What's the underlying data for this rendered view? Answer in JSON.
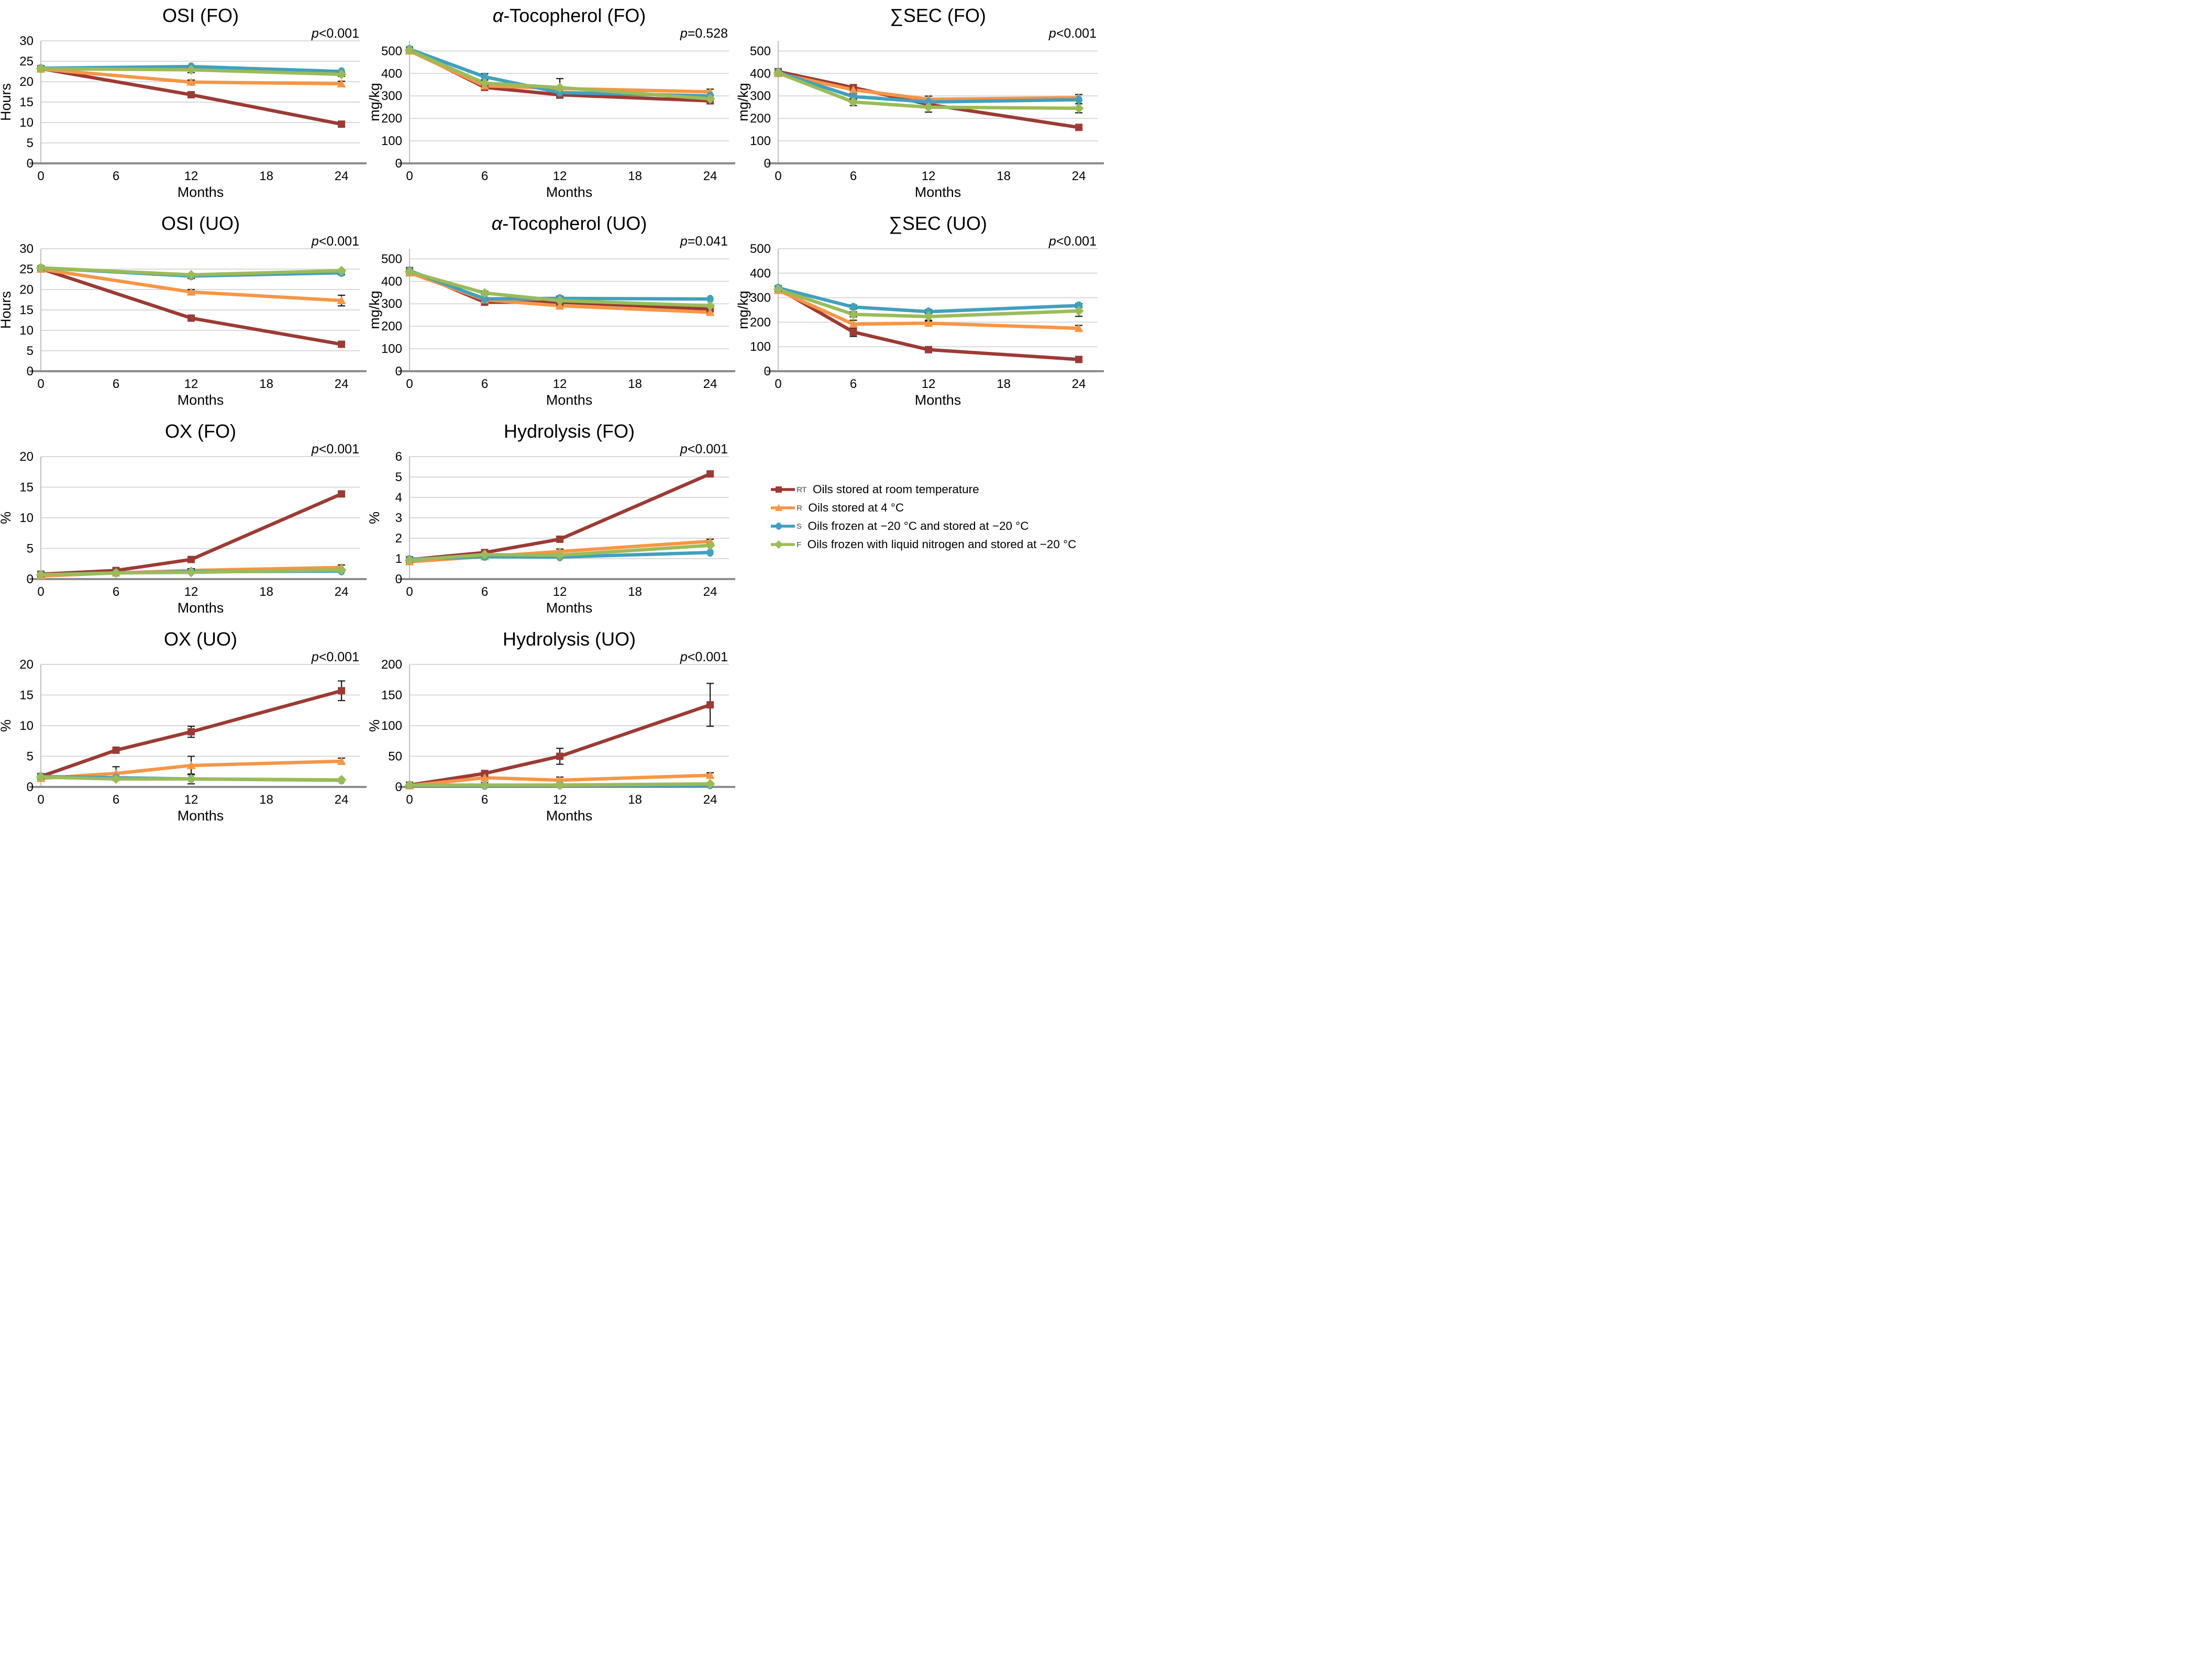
{
  "legend": {
    "items": [
      {
        "key": "RT",
        "label": "Oils stored at room temperature",
        "color": "#9B3B35",
        "marker": "square"
      },
      {
        "key": "R",
        "label": "Oils stored at 4 °C",
        "color": "#F79646",
        "marker": "triangle"
      },
      {
        "key": "S",
        "label": "Oils frozen at −20 °C and stored at −20 °C",
        "color": "#41A0BE",
        "marker": "circle"
      },
      {
        "key": "F",
        "label": "Oils frozen with liquid nitrogen and stored at −20 °C",
        "color": "#9BBB59",
        "marker": "diamond"
      }
    ]
  },
  "chart_data": [
    {
      "type": "line",
      "title": "OSI (FO)",
      "p_label": "p<0.001",
      "xlabel": "Months",
      "ylabel": "Hours",
      "xlim": [
        0,
        25.5
      ],
      "x_ticks": [
        0,
        6,
        12,
        18,
        24
      ],
      "ylim": [
        0,
        30
      ],
      "y_ticks": [
        0,
        5,
        10,
        15,
        20,
        25,
        30
      ],
      "x": [
        0,
        12,
        24
      ],
      "series": [
        {
          "key": "RT",
          "values": [
            23.2,
            16.8,
            9.6
          ],
          "err": [
            0,
            0.5,
            0.5
          ]
        },
        {
          "key": "R",
          "values": [
            23.1,
            19.9,
            19.5
          ],
          "err": [
            0,
            0.5,
            0.6
          ]
        },
        {
          "key": "S",
          "values": [
            23.3,
            23.7,
            22.5
          ],
          "err": [
            0,
            0,
            0
          ]
        },
        {
          "key": "F",
          "values": [
            23.2,
            22.9,
            21.8
          ],
          "err": [
            0,
            0.7,
            0.5
          ]
        }
      ]
    },
    {
      "type": "line",
      "title": "α-Tocopherol (FO)",
      "p_label": "p=0.528",
      "xlabel": "Months",
      "ylabel": "mg/kg",
      "xlim": [
        0,
        25.5
      ],
      "x_ticks": [
        0,
        6,
        12,
        18,
        24
      ],
      "ylim": [
        0,
        545
      ],
      "y_ticks": [
        0,
        100,
        200,
        300,
        400,
        500
      ],
      "x": [
        0,
        6,
        12,
        24
      ],
      "series": [
        {
          "key": "RT",
          "values": [
            505,
            338,
            305,
            278
          ],
          "err": [
            0,
            0,
            15,
            0
          ]
        },
        {
          "key": "R",
          "values": [
            500,
            345,
            333,
            318
          ],
          "err": [
            0,
            0,
            0,
            12
          ]
        },
        {
          "key": "S",
          "values": [
            508,
            385,
            315,
            300
          ],
          "err": [
            0,
            14,
            0,
            0
          ]
        },
        {
          "key": "F",
          "values": [
            503,
            357,
            337,
            287
          ],
          "err": [
            0,
            0,
            40,
            0
          ]
        }
      ]
    },
    {
      "type": "line",
      "title": "∑SEC (FO)",
      "p_label": "p<0.001",
      "xlabel": "Months",
      "ylabel": "mg/kg",
      "xlim": [
        0,
        25.5
      ],
      "x_ticks": [
        0,
        6,
        12,
        18,
        24
      ],
      "ylim": [
        0,
        545
      ],
      "y_ticks": [
        0,
        100,
        200,
        300,
        400,
        500
      ],
      "x": [
        0,
        6,
        12,
        24
      ],
      "series": [
        {
          "key": "RT",
          "values": [
            408,
            337,
            262,
            160
          ],
          "err": [
            0,
            0,
            0,
            0
          ]
        },
        {
          "key": "R",
          "values": [
            400,
            327,
            285,
            292
          ],
          "err": [
            0,
            0,
            14,
            14
          ]
        },
        {
          "key": "S",
          "values": [
            405,
            297,
            273,
            283
          ],
          "err": [
            0,
            12,
            0,
            0
          ]
        },
        {
          "key": "F",
          "values": [
            402,
            273,
            250,
            245
          ],
          "err": [
            0,
            16,
            22,
            20
          ]
        }
      ]
    },
    {
      "type": "line",
      "title": "OSI (UO)",
      "p_label": "p<0.001",
      "xlabel": "Months",
      "ylabel": "Hours",
      "xlim": [
        0,
        25.5
      ],
      "x_ticks": [
        0,
        6,
        12,
        18,
        24
      ],
      "ylim": [
        0,
        30
      ],
      "y_ticks": [
        0,
        5,
        10,
        15,
        20,
        25,
        30
      ],
      "x": [
        0,
        12,
        24
      ],
      "series": [
        {
          "key": "RT",
          "values": [
            25.1,
            13.0,
            6.6
          ],
          "err": [
            0,
            0.5,
            0
          ]
        },
        {
          "key": "R",
          "values": [
            25.0,
            19.4,
            17.3
          ],
          "err": [
            0,
            0.6,
            1.3
          ]
        },
        {
          "key": "S",
          "values": [
            25.3,
            23.3,
            24.1
          ],
          "err": [
            0,
            0.6,
            0.5
          ]
        },
        {
          "key": "F",
          "values": [
            25.3,
            23.6,
            24.6
          ],
          "err": [
            0,
            0,
            0
          ]
        }
      ]
    },
    {
      "type": "line",
      "title": "α-Tocopherol (UO)",
      "p_label": "p=0.041",
      "xlabel": "Months",
      "ylabel": "mg/kg",
      "xlim": [
        0,
        25.5
      ],
      "x_ticks": [
        0,
        6,
        12,
        18,
        24
      ],
      "ylim": [
        0,
        545
      ],
      "y_ticks": [
        0,
        100,
        200,
        300,
        400,
        500
      ],
      "x": [
        0,
        6,
        12,
        24
      ],
      "series": [
        {
          "key": "RT",
          "values": [
            448,
            307,
            307,
            277
          ],
          "err": [
            0,
            0,
            0,
            0
          ]
        },
        {
          "key": "R",
          "values": [
            438,
            318,
            291,
            262
          ],
          "err": [
            0,
            0,
            14,
            10
          ]
        },
        {
          "key": "S",
          "values": [
            447,
            322,
            324,
            321
          ],
          "err": [
            0,
            0,
            10,
            0
          ]
        },
        {
          "key": "F",
          "values": [
            442,
            348,
            314,
            291
          ],
          "err": [
            0,
            8,
            0,
            0
          ]
        }
      ]
    },
    {
      "type": "line",
      "title": "∑SEC (UO)",
      "p_label": "p<0.001",
      "xlabel": "Months",
      "ylabel": "mg/kg",
      "xlim": [
        0,
        25.5
      ],
      "x_ticks": [
        0,
        6,
        12,
        18,
        24
      ],
      "ylim": [
        0,
        500
      ],
      "y_ticks": [
        0,
        100,
        200,
        300,
        400,
        500
      ],
      "x": [
        0,
        6,
        12,
        24
      ],
      "series": [
        {
          "key": "RT",
          "values": [
            337,
            160,
            88,
            48
          ],
          "err": [
            0,
            18,
            8,
            12
          ]
        },
        {
          "key": "R",
          "values": [
            330,
            192,
            196,
            175
          ],
          "err": [
            0,
            16,
            12,
            12
          ]
        },
        {
          "key": "S",
          "values": [
            340,
            262,
            243,
            268
          ],
          "err": [
            0,
            8,
            8,
            8
          ]
        },
        {
          "key": "F",
          "values": [
            334,
            232,
            223,
            246
          ],
          "err": [
            0,
            10,
            18,
            22
          ]
        }
      ]
    },
    {
      "type": "line",
      "title": "OX (FO)",
      "p_label": "p<0.001",
      "xlabel": "Months",
      "ylabel": "%",
      "xlim": [
        0,
        25.5
      ],
      "x_ticks": [
        0,
        6,
        12,
        18,
        24
      ],
      "ylim": [
        0,
        20
      ],
      "y_ticks": [
        0,
        5,
        10,
        15,
        20
      ],
      "x": [
        0,
        6,
        12,
        24
      ],
      "series": [
        {
          "key": "RT",
          "values": [
            0.8,
            1.4,
            3.2,
            13.9
          ],
          "err": [
            0,
            0,
            0.4,
            0.4
          ]
        },
        {
          "key": "R",
          "values": [
            0.5,
            1.0,
            1.4,
            1.9
          ],
          "err": [
            0,
            0,
            0.3,
            0.4
          ]
        },
        {
          "key": "S",
          "values": [
            0.7,
            1.0,
            1.2,
            1.3
          ],
          "err": [
            0,
            0,
            0.25,
            0
          ]
        },
        {
          "key": "F",
          "values": [
            0.7,
            1.0,
            1.1,
            1.5
          ],
          "err": [
            0,
            0,
            0,
            0
          ]
        }
      ]
    },
    {
      "type": "line",
      "title": "Hydrolysis (FO)",
      "p_label": "p<0.001",
      "xlabel": "Months",
      "ylabel": "%",
      "xlim": [
        0,
        25.5
      ],
      "x_ticks": [
        0,
        6,
        12,
        18,
        24
      ],
      "ylim": [
        0,
        6
      ],
      "y_ticks": [
        0,
        1,
        2,
        3,
        4,
        5,
        6
      ],
      "x": [
        0,
        6,
        12,
        24
      ],
      "series": [
        {
          "key": "RT",
          "values": [
            0.95,
            1.3,
            1.95,
            5.15
          ],
          "err": [
            0,
            0,
            0.1,
            0.1
          ]
        },
        {
          "key": "R",
          "values": [
            0.85,
            1.1,
            1.35,
            1.85
          ],
          "err": [
            0,
            0,
            0.12,
            0.1
          ]
        },
        {
          "key": "S",
          "values": [
            0.97,
            1.1,
            1.08,
            1.3
          ],
          "err": [
            0,
            0,
            0,
            0
          ]
        },
        {
          "key": "F",
          "values": [
            0.92,
            1.2,
            1.17,
            1.65
          ],
          "err": [
            0,
            0,
            0,
            0
          ]
        }
      ]
    },
    {
      "type": "line",
      "title": "OX (UO)",
      "p_label": "p<0.001",
      "xlabel": "Months",
      "ylabel": "%",
      "xlim": [
        0,
        25.5
      ],
      "x_ticks": [
        0,
        6,
        12,
        18,
        24
      ],
      "ylim": [
        0,
        20
      ],
      "y_ticks": [
        0,
        5,
        10,
        15,
        20
      ],
      "x": [
        0,
        6,
        12,
        24
      ],
      "series": [
        {
          "key": "RT",
          "values": [
            1.7,
            6.0,
            9.0,
            15.7
          ],
          "err": [
            0,
            0.3,
            0.9,
            1.6
          ]
        },
        {
          "key": "R",
          "values": [
            1.4,
            2.2,
            3.5,
            4.2
          ],
          "err": [
            0,
            1.1,
            1.5,
            0.5
          ]
        },
        {
          "key": "S",
          "values": [
            1.7,
            1.5,
            1.3,
            1.1
          ],
          "err": [
            0,
            0.3,
            0.8,
            0
          ]
        },
        {
          "key": "F",
          "values": [
            1.6,
            1.3,
            1.3,
            1.15
          ],
          "err": [
            0,
            0,
            0,
            0
          ]
        }
      ]
    },
    {
      "type": "line",
      "title": "Hydrolysis (UO)",
      "p_label": "p<0.001",
      "xlabel": "Months",
      "ylabel": "%",
      "xlim": [
        0,
        25.5
      ],
      "x_ticks": [
        0,
        6,
        12,
        18,
        24
      ],
      "ylim": [
        0,
        200
      ],
      "y_ticks": [
        0,
        50,
        100,
        150,
        200
      ],
      "x": [
        0,
        6,
        12,
        24
      ],
      "series": [
        {
          "key": "RT",
          "values": [
            3,
            22,
            50,
            134
          ],
          "err": [
            0,
            4,
            13,
            35
          ]
        },
        {
          "key": "R",
          "values": [
            2,
            15,
            11,
            19
          ],
          "err": [
            0,
            8,
            5,
            4
          ]
        },
        {
          "key": "S",
          "values": [
            3,
            2,
            3,
            3
          ],
          "err": [
            0,
            0,
            0,
            0
          ]
        },
        {
          "key": "F",
          "values": [
            3,
            3,
            3,
            5
          ],
          "err": [
            0,
            0,
            0,
            0
          ]
        }
      ]
    }
  ]
}
